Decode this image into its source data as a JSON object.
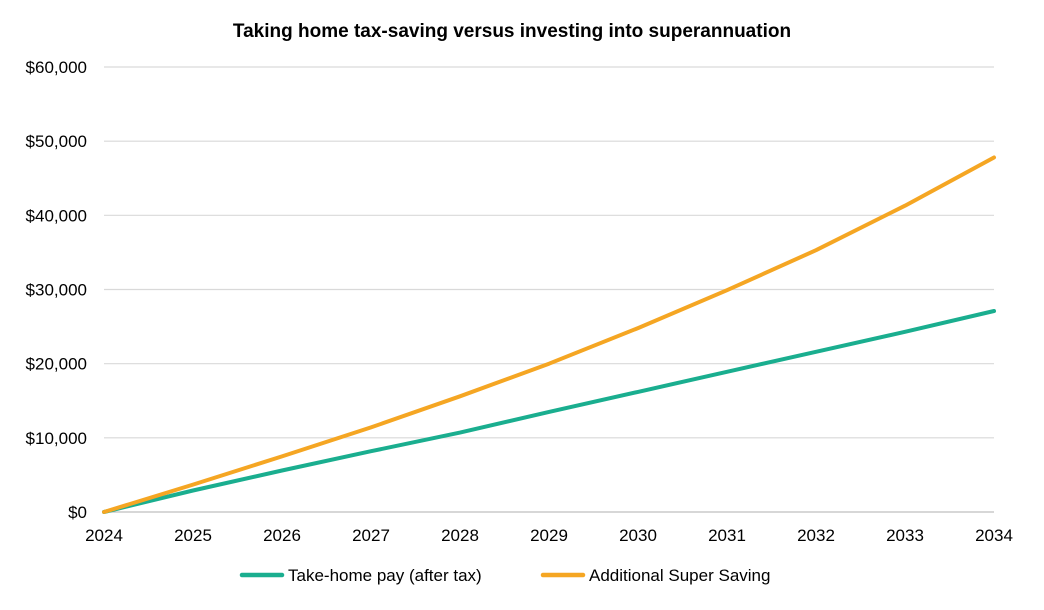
{
  "chart_data": {
    "type": "line",
    "title": "Taking home tax-saving versus investing into superannuation",
    "xlabel": "",
    "ylabel": "",
    "x": [
      2024,
      2025,
      2026,
      2027,
      2028,
      2029,
      2030,
      2031,
      2032,
      2033,
      2034
    ],
    "xlim": [
      2024,
      2034
    ],
    "ylim": [
      0,
      60000
    ],
    "yticks": [
      0,
      10000,
      20000,
      30000,
      40000,
      50000,
      60000
    ],
    "ytick_labels": [
      "$0",
      "$10,000",
      "$20,000",
      "$30,000",
      "$40,000",
      "$50,000",
      "$60,000"
    ],
    "xtick_labels": [
      "2024",
      "2025",
      "2026",
      "2027",
      "2028",
      "2029",
      "2030",
      "2031",
      "2032",
      "2033",
      "2034"
    ],
    "grid": true,
    "legend_position": "bottom",
    "series": [
      {
        "name": "Take-home pay (after tax)",
        "color": "#1aae8f",
        "values": [
          0,
          2900,
          5600,
          8200,
          10700,
          13500,
          16200,
          18900,
          21600,
          24300,
          27100
        ]
      },
      {
        "name": "Additional Super Saving",
        "color": "#f5a623",
        "values": [
          0,
          3700,
          7500,
          11400,
          15600,
          20000,
          24800,
          29900,
          35300,
          41300,
          47800
        ]
      }
    ]
  }
}
